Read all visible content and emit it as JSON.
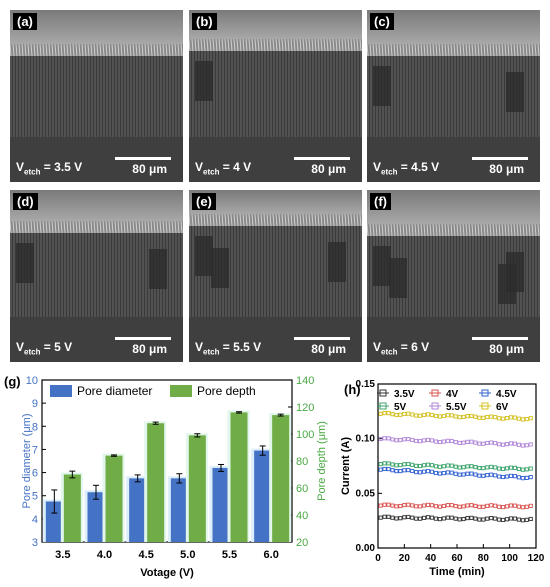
{
  "panels": [
    {
      "label": "(a)",
      "v_prefix": "V",
      "v_sub": "etch",
      "v_value": " = 3.5 V",
      "scale": "80 μm",
      "top_ratio": 0.2,
      "porous_end": 0.98,
      "defects": 0
    },
    {
      "label": "(b)",
      "v_prefix": "V",
      "v_sub": "etch",
      "v_value": " = 4 V",
      "scale": "80 μm",
      "top_ratio": 0.17,
      "porous_end": 0.98,
      "defects": 1
    },
    {
      "label": "(c)",
      "v_prefix": "V",
      "v_sub": "etch",
      "v_value": " = 4.5 V",
      "scale": "80 μm",
      "top_ratio": 0.2,
      "porous_end": 0.96,
      "defects": 2
    },
    {
      "label": "(d)",
      "v_prefix": "V",
      "v_sub": "etch",
      "v_value": " = 5 V",
      "scale": "80 μm",
      "top_ratio": 0.18,
      "porous_end": 0.96,
      "defects": 2
    },
    {
      "label": "(e)",
      "v_prefix": "V",
      "v_sub": "etch",
      "v_value": " = 5.5 V",
      "scale": "80 μm",
      "top_ratio": 0.14,
      "porous_end": 0.96,
      "defects": 3
    },
    {
      "label": "(f)",
      "v_prefix": "V",
      "v_sub": "etch",
      "v_value": " = 6 V",
      "scale": "80 μm",
      "top_ratio": 0.2,
      "porous_end": 0.96,
      "defects": 4
    }
  ],
  "chart_data": [
    {
      "type": "bar",
      "panel_label": "(g)",
      "categories": [
        "3.5",
        "4.0",
        "4.5",
        "5.0",
        "5.5",
        "6.0"
      ],
      "xlabel": "Votage (V)",
      "series": [
        {
          "name": "Pore diameter",
          "axis": "left",
          "color": "#4472c4",
          "values": [
            4.75,
            5.15,
            5.75,
            5.75,
            6.2,
            6.95
          ],
          "errors": [
            0.5,
            0.3,
            0.15,
            0.2,
            0.15,
            0.2
          ]
        },
        {
          "name": "Pore depth",
          "axis": "right",
          "color": "#70ad47",
          "values": [
            70,
            84,
            108,
            99,
            116,
            114
          ],
          "errors": [
            2.5,
            0.5,
            0.8,
            1.2,
            0.5,
            0.7
          ]
        }
      ],
      "left_axis": {
        "label": "Pore diameter (μm)",
        "ylim": [
          3,
          10
        ],
        "ticks": [
          "3",
          "4",
          "5",
          "6",
          "7",
          "8",
          "9",
          "10"
        ],
        "color": "#4472c4"
      },
      "right_axis": {
        "label": "Pore depth (μm)",
        "ylim": [
          20,
          140
        ],
        "ticks": [
          "20",
          "40",
          "60",
          "80",
          "100",
          "120",
          "140"
        ],
        "color": "#4aa844"
      },
      "legend": "top"
    },
    {
      "type": "scatter",
      "panel_label": "(h)",
      "xlabel": "Time (min)",
      "ylabel": "Current (A)",
      "xlim": [
        0,
        120
      ],
      "ylim": [
        0,
        0.15
      ],
      "xticks": [
        "0",
        "20",
        "40",
        "60",
        "80",
        "100",
        "120"
      ],
      "yticks": [
        "0.00",
        "0.05",
        "0.10",
        "0.15"
      ],
      "legend": "top",
      "series": [
        {
          "name": "3.5V",
          "color": "#333333",
          "start": 0.028,
          "end": 0.026
        },
        {
          "name": "4V",
          "color": "#d9534f",
          "start": 0.039,
          "end": 0.038
        },
        {
          "name": "4.5V",
          "color": "#3060d0",
          "start": 0.072,
          "end": 0.064
        },
        {
          "name": "5V",
          "color": "#3aa36b",
          "start": 0.077,
          "end": 0.072
        },
        {
          "name": "5.5V",
          "color": "#b085d8",
          "start": 0.1,
          "end": 0.094
        },
        {
          "name": "6V",
          "color": "#d4c020",
          "start": 0.123,
          "end": 0.118
        }
      ]
    }
  ]
}
